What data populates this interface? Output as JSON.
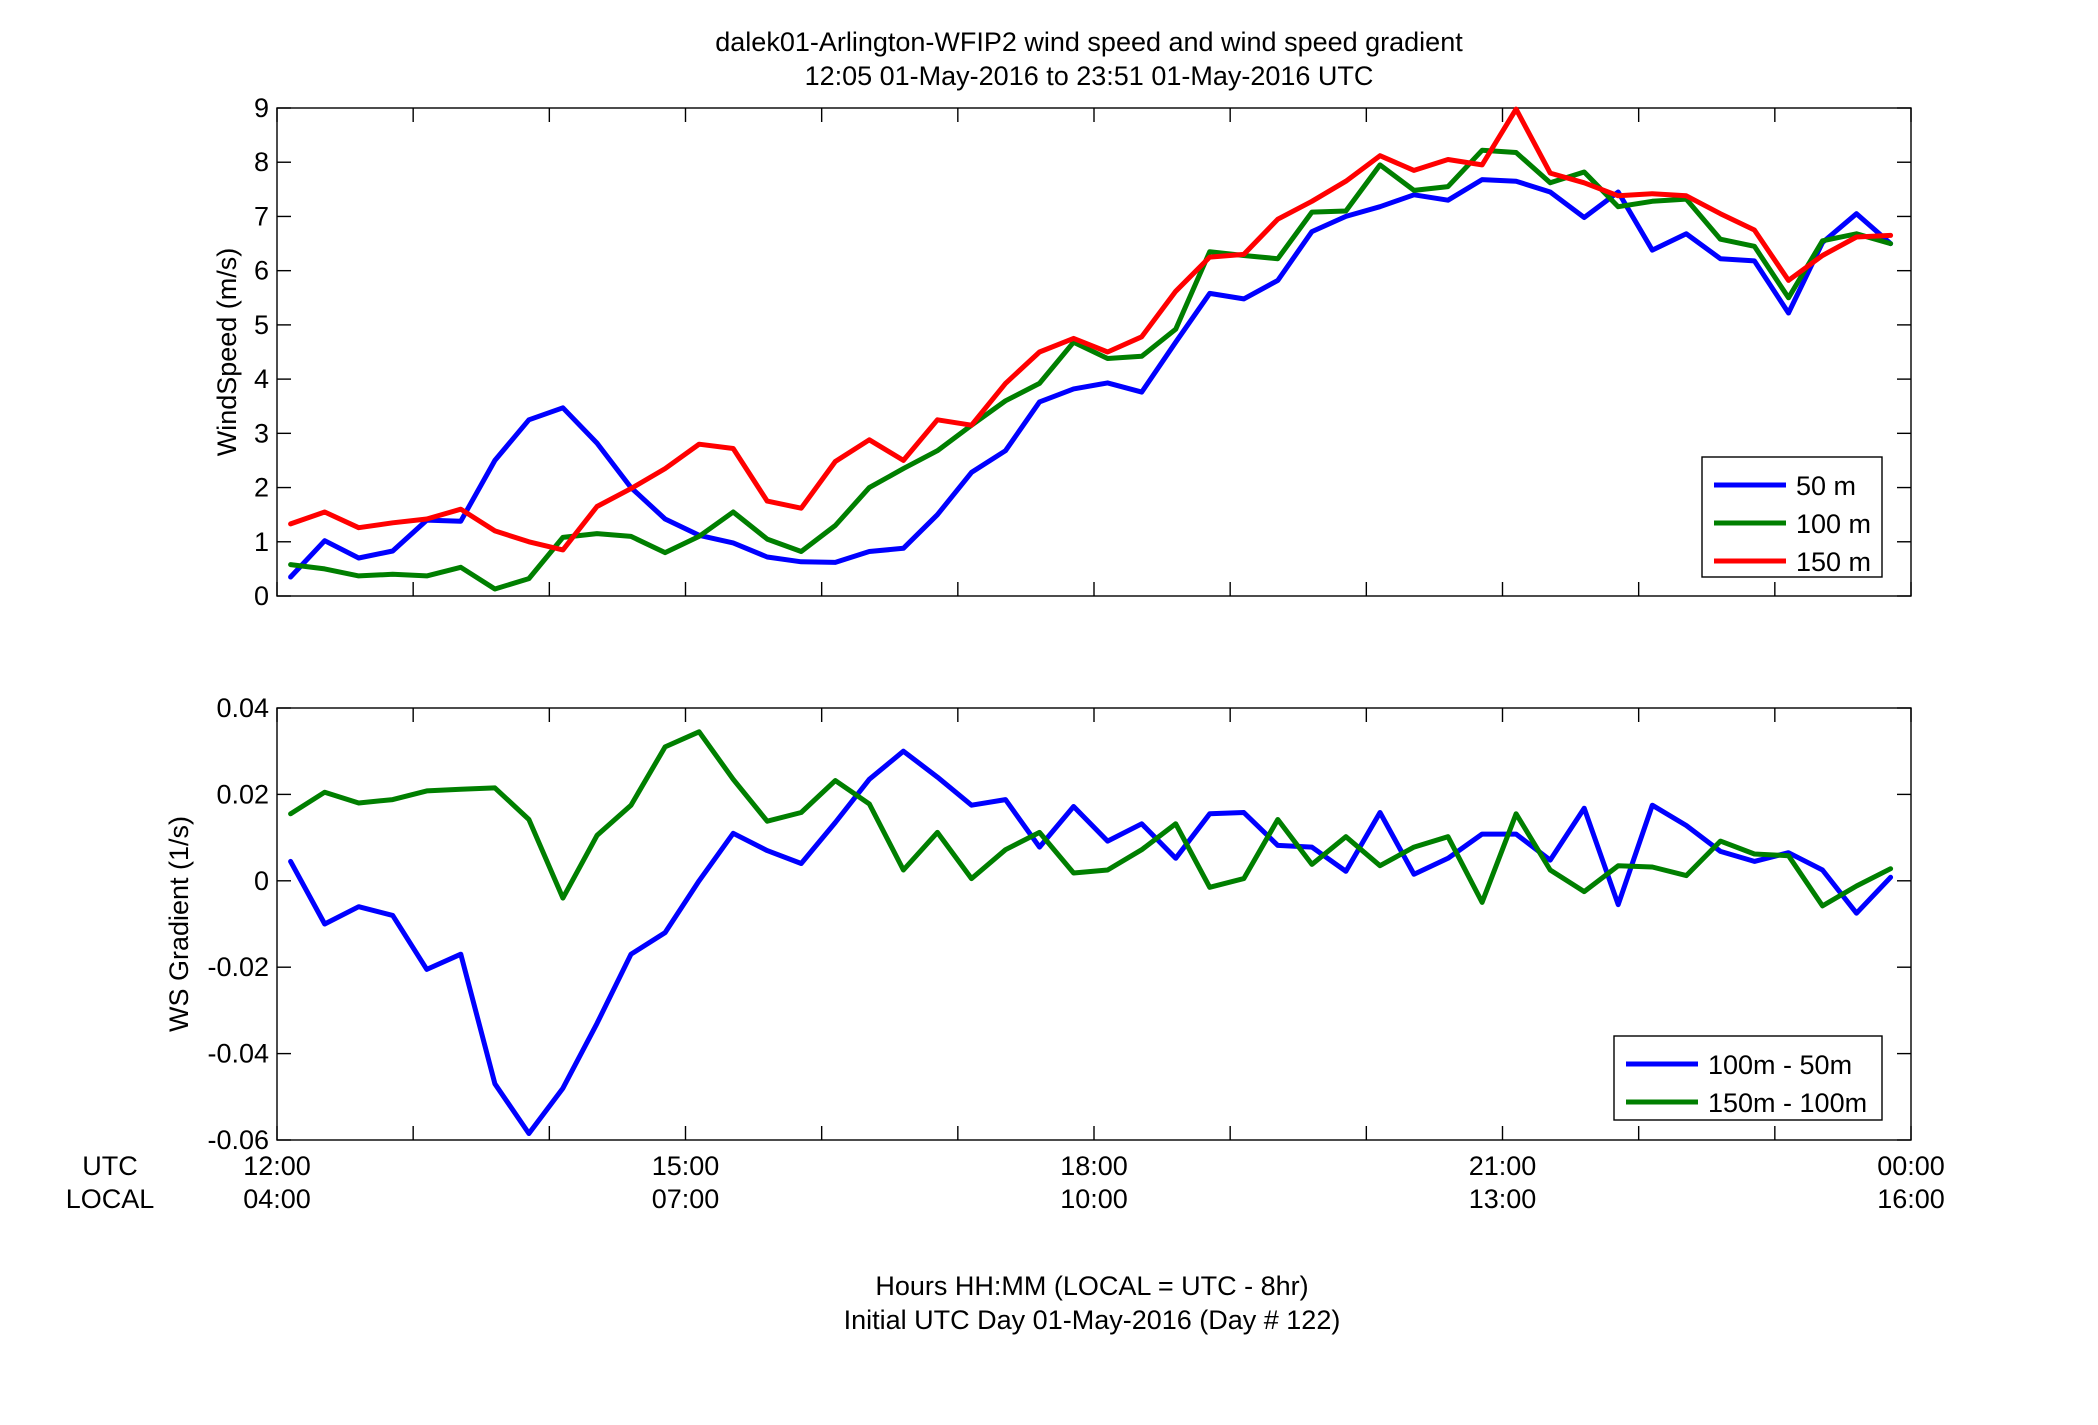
{
  "figure": {
    "title_line1": "dalek01-Arlington-WFIP2  wind speed and wind speed gradient",
    "title_line2": "12:05 01-May-2016 to 23:51 01-May-2016  UTC",
    "xlabel_line1": "Hours HH:MM  (LOCAL = UTC - 8hr)",
    "xlabel_line2": "Initial UTC Day 01-May-2016 (Day # 122)",
    "utc_label": "UTC",
    "local_label": "LOCAL",
    "x_ticks_utc": [
      "12:00",
      "15:00",
      "18:00",
      "21:00",
      "00:00"
    ],
    "x_ticks_local": [
      "04:00",
      "07:00",
      "10:00",
      "13:00",
      "16:00"
    ]
  },
  "chart_data": [
    {
      "type": "line",
      "ylabel": "WindSpeed (m/s)",
      "ylim": [
        0,
        9
      ],
      "yticks": [
        "0",
        "1",
        "2",
        "3",
        "4",
        "5",
        "6",
        "7",
        "8",
        "9"
      ],
      "xlim": [
        12,
        24
      ],
      "grid": false,
      "legend_position": "bottom-right",
      "x": [
        12.1,
        12.35,
        12.6,
        12.85,
        13.1,
        13.35,
        13.6,
        13.85,
        14.1,
        14.35,
        14.6,
        14.85,
        15.1,
        15.35,
        15.6,
        15.85,
        16.1,
        16.35,
        16.6,
        16.85,
        17.1,
        17.35,
        17.6,
        17.85,
        18.1,
        18.35,
        18.6,
        18.85,
        19.1,
        19.35,
        19.6,
        19.85,
        20.1,
        20.35,
        20.6,
        20.85,
        21.1,
        21.35,
        21.6,
        21.85,
        22.1,
        22.35,
        22.6,
        22.85,
        23.1,
        23.35,
        23.6,
        23.85
      ],
      "series": [
        {
          "name": "50 m",
          "color": "#0000ff",
          "values": [
            0.35,
            1.02,
            0.7,
            0.83,
            1.4,
            1.38,
            2.5,
            3.25,
            3.47,
            2.82,
            2.0,
            1.42,
            1.12,
            0.98,
            0.72,
            0.63,
            0.62,
            0.82,
            0.88,
            1.5,
            2.28,
            2.68,
            3.58,
            3.82,
            3.93,
            3.76,
            4.68,
            5.58,
            5.48,
            5.82,
            6.72,
            7.0,
            7.18,
            7.4,
            7.3,
            7.68,
            7.65,
            7.45,
            6.98,
            7.45,
            6.38,
            6.68,
            6.22,
            6.18,
            5.22,
            6.52,
            7.05,
            6.5
          ]
        },
        {
          "name": "100 m",
          "color": "#007f00",
          "values": [
            0.58,
            0.5,
            0.37,
            0.4,
            0.37,
            0.53,
            0.13,
            0.32,
            1.08,
            1.15,
            1.1,
            0.8,
            1.1,
            1.55,
            1.05,
            0.82,
            1.3,
            2.0,
            2.35,
            2.68,
            3.15,
            3.6,
            3.92,
            4.68,
            4.38,
            4.42,
            4.92,
            6.35,
            6.28,
            6.22,
            7.08,
            7.1,
            7.95,
            7.48,
            7.55,
            8.22,
            8.18,
            7.62,
            7.82,
            7.18,
            7.28,
            7.32,
            6.58,
            6.45,
            5.5,
            6.55,
            6.68,
            6.5
          ]
        },
        {
          "name": "150 m",
          "color": "#ff0000",
          "values": [
            1.33,
            1.55,
            1.26,
            1.35,
            1.42,
            1.6,
            1.2,
            1.0,
            0.85,
            1.65,
            1.98,
            2.35,
            2.8,
            2.72,
            1.75,
            1.62,
            2.48,
            2.88,
            2.5,
            3.25,
            3.15,
            3.92,
            4.5,
            4.75,
            4.5,
            4.78,
            5.62,
            6.25,
            6.3,
            6.95,
            7.28,
            7.65,
            8.12,
            7.85,
            8.05,
            7.95,
            8.98,
            7.8,
            7.62,
            7.38,
            7.42,
            7.38,
            7.05,
            6.75,
            5.82,
            6.28,
            6.62,
            6.65
          ]
        }
      ]
    },
    {
      "type": "line",
      "ylabel": "WS Gradient (1/s)",
      "ylim": [
        -0.06,
        0.04
      ],
      "yticks": [
        "-0.06",
        "-0.04",
        "-0.02",
        "0",
        "0.02",
        "0.04"
      ],
      "xlim": [
        12,
        24
      ],
      "grid": false,
      "legend_position": "bottom-right",
      "x": [
        12.1,
        12.35,
        12.6,
        12.85,
        13.1,
        13.35,
        13.6,
        13.85,
        14.1,
        14.35,
        14.6,
        14.85,
        15.1,
        15.35,
        15.6,
        15.85,
        16.1,
        16.35,
        16.6,
        16.85,
        17.1,
        17.35,
        17.6,
        17.85,
        18.1,
        18.35,
        18.6,
        18.85,
        19.1,
        19.35,
        19.6,
        19.85,
        20.1,
        20.35,
        20.6,
        20.85,
        21.1,
        21.35,
        21.6,
        21.85,
        22.1,
        22.35,
        22.6,
        22.85,
        23.1,
        23.35,
        23.6,
        23.85
      ],
      "series": [
        {
          "name": "100m - 50m",
          "color": "#0000ff",
          "values": [
            0.0045,
            -0.01,
            -0.006,
            -0.008,
            -0.0205,
            -0.017,
            -0.047,
            -0.0585,
            -0.048,
            -0.033,
            -0.017,
            -0.012,
            0.0,
            0.011,
            0.007,
            0.004,
            0.0135,
            0.0235,
            0.03,
            0.024,
            0.0175,
            0.0188,
            0.0078,
            0.0172,
            0.0092,
            0.0132,
            0.0052,
            0.0155,
            0.0158,
            0.0082,
            0.0078,
            0.0022,
            0.0158,
            0.0015,
            0.0052,
            0.0108,
            0.0108,
            0.0048,
            0.0168,
            -0.0055,
            0.0175,
            0.0128,
            0.0068,
            0.0045,
            0.0065,
            0.0025,
            -0.0075,
            0.0008
          ]
        },
        {
          "name": "150m - 100m",
          "color": "#007f00",
          "values": [
            0.0155,
            0.0205,
            0.018,
            0.0188,
            0.0208,
            0.0212,
            0.0215,
            0.0142,
            -0.004,
            0.0105,
            0.0175,
            0.031,
            0.0345,
            0.0235,
            0.0138,
            0.0158,
            0.0232,
            0.0178,
            0.0025,
            0.0112,
            0.0005,
            0.0072,
            0.0112,
            0.0018,
            0.0025,
            0.0072,
            0.0132,
            -0.0015,
            0.0005,
            0.0142,
            0.0038,
            0.0102,
            0.0035,
            0.0078,
            0.0102,
            -0.005,
            0.0155,
            0.0025,
            -0.0025,
            0.0035,
            0.0032,
            0.0012,
            0.0092,
            0.0062,
            0.0058,
            -0.0058,
            -0.0012,
            0.0028
          ]
        }
      ]
    }
  ]
}
